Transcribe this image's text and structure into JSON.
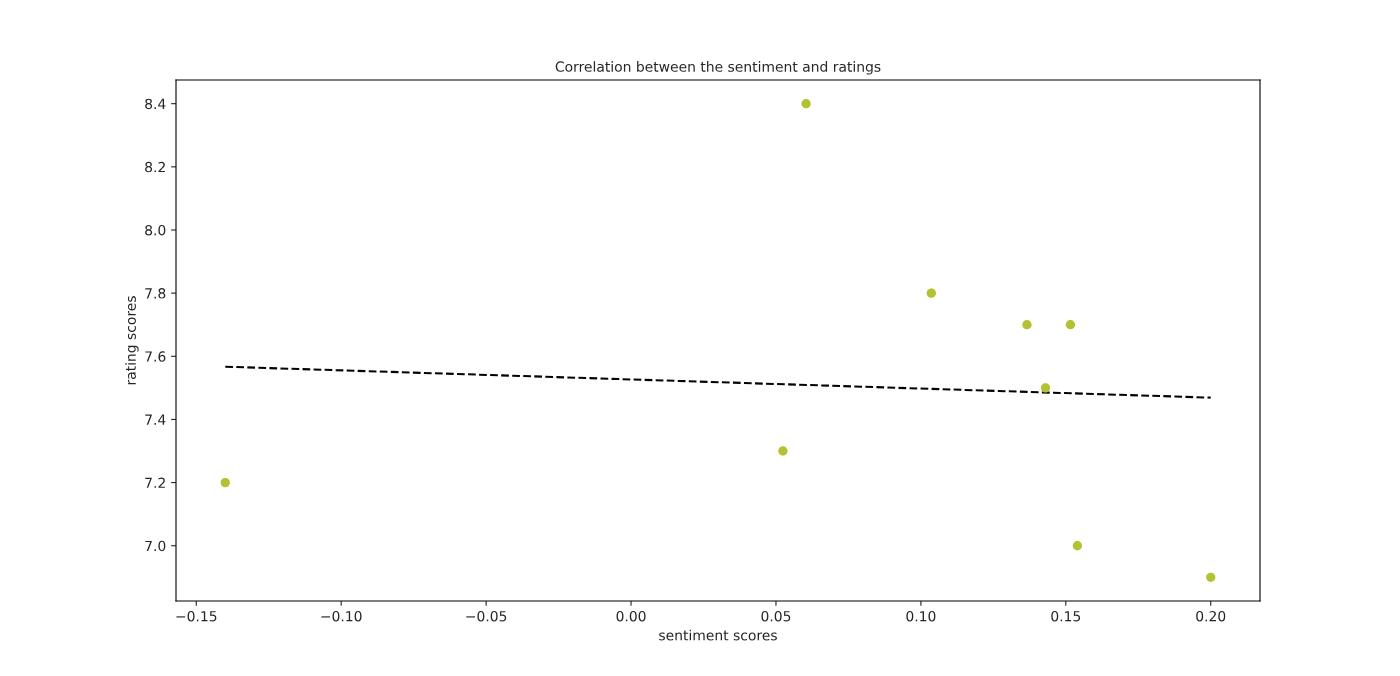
{
  "chart_data": {
    "type": "scatter",
    "title": "Correlation between the sentiment and ratings",
    "xlabel": "sentiment scores",
    "ylabel": "rating scores",
    "series": [
      {
        "color": "#b3c232",
        "marker": "circle",
        "x": [
          -0.14,
          0.0524,
          0.0604,
          0.1036,
          0.1366,
          0.143,
          0.1516,
          0.154,
          0.2
        ],
        "values": [
          7.2,
          7.3,
          8.4,
          7.8,
          7.7,
          7.5,
          7.7,
          7.0,
          6.9
        ]
      },
      {
        "type": "line",
        "color": "#000000",
        "line_style": "dashed",
        "x": [
          -0.14,
          0.2
        ],
        "values": [
          7.567,
          7.469
        ]
      }
    ],
    "xlim": [
      -0.157,
      0.217
    ],
    "ylim": [
      6.825,
      8.475
    ],
    "xticks": [
      {
        "value": -0.15,
        "label": "−0.15"
      },
      {
        "value": -0.1,
        "label": "−0.10"
      },
      {
        "value": -0.05,
        "label": "−0.05"
      },
      {
        "value": 0,
        "label": "0.00"
      },
      {
        "value": 0.05,
        "label": "0.05"
      },
      {
        "value": 0.1,
        "label": "0.10"
      },
      {
        "value": 0.15,
        "label": "0.15"
      },
      {
        "value": 0.2,
        "label": "0.20"
      }
    ],
    "yticks": [
      {
        "value": 7.0,
        "label": "7.0"
      },
      {
        "value": 7.2,
        "label": "7.2"
      },
      {
        "value": 7.4,
        "label": "7.4"
      },
      {
        "value": 7.6,
        "label": "7.6"
      },
      {
        "value": 7.8,
        "label": "7.8"
      },
      {
        "value": 8.0,
        "label": "8.0"
      },
      {
        "value": 8.2,
        "label": "8.2"
      },
      {
        "value": 8.4,
        "label": "8.4"
      }
    ],
    "grid": false
  }
}
